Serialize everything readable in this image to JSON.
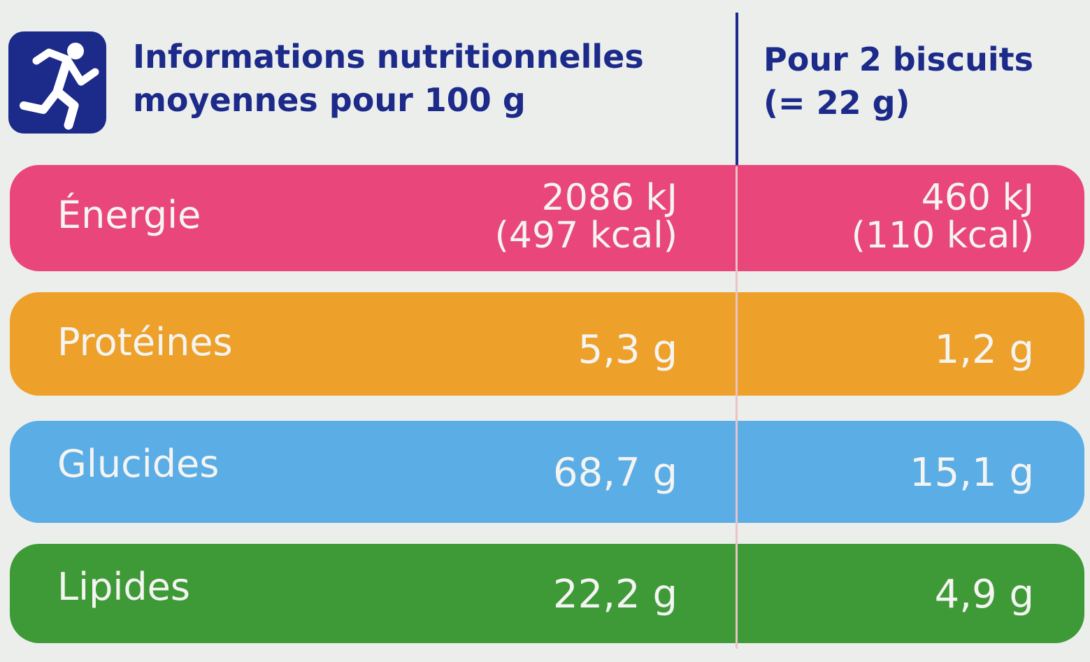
{
  "header": {
    "title": [
      "Informations nutritionnelles",
      "moyennes pour 100 g"
    ],
    "serving": [
      "Pour 2 biscuits",
      "(= 22 g)"
    ]
  },
  "rows": [
    {
      "label": "Énergie",
      "per_100g": [
        "2086 kJ",
        "(497 kcal)"
      ],
      "per_serving": [
        "460 kJ",
        "(110 kcal)"
      ]
    },
    {
      "label": "Protéines",
      "per_100g": [
        "5,3 g"
      ],
      "per_serving": [
        "1,2 g"
      ]
    },
    {
      "label": "Glucides",
      "per_100g": [
        "68,7 g"
      ],
      "per_serving": [
        "15,1 g"
      ]
    },
    {
      "label": "Lipides",
      "per_100g": [
        "22,2 g"
      ],
      "per_serving": [
        "4,9 g"
      ]
    }
  ]
}
